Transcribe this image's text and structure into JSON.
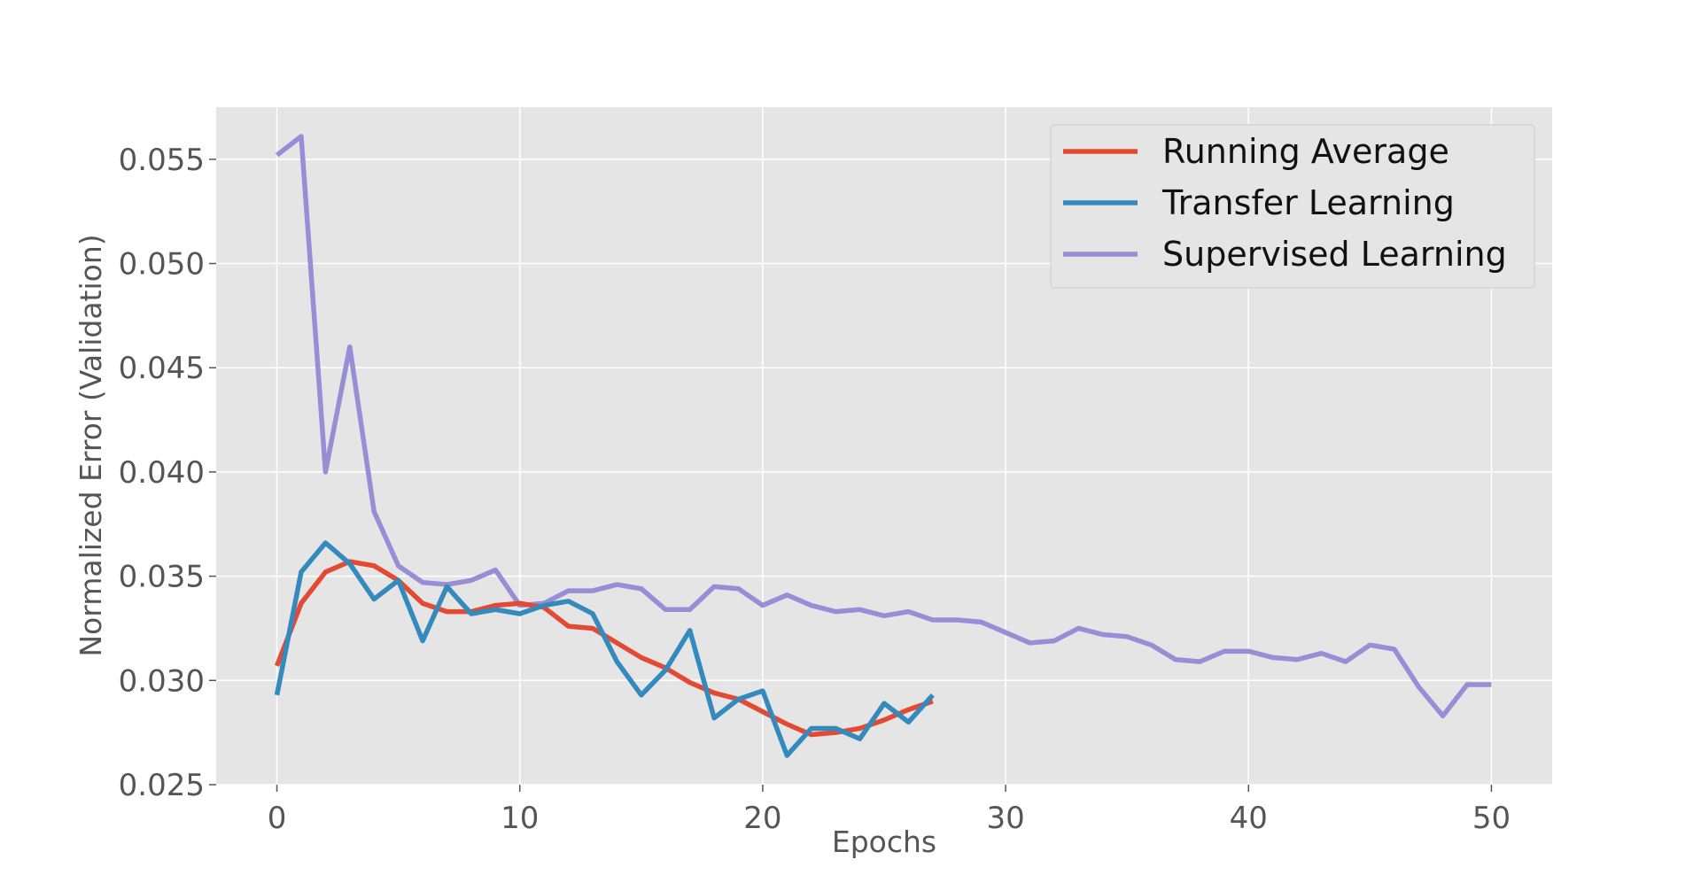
{
  "chart_data": {
    "type": "line",
    "title": "",
    "xlabel": "Epochs",
    "ylabel": "Normalized Error (Validation)",
    "xlim": [
      -2.5,
      52.5
    ],
    "ylim": [
      0.025,
      0.0575
    ],
    "xticks": [
      0,
      10,
      20,
      30,
      40,
      50
    ],
    "yticks": [
      0.025,
      0.03,
      0.035,
      0.04,
      0.045,
      0.05,
      0.055
    ],
    "xtick_labels": [
      "0",
      "10",
      "20",
      "30",
      "40",
      "50"
    ],
    "ytick_labels": [
      "0.025",
      "0.030",
      "0.035",
      "0.040",
      "0.045",
      "0.050",
      "0.055"
    ],
    "grid": true,
    "legend_position": "top-right",
    "series": [
      {
        "name": "Running Average",
        "color": "#E24A33",
        "x": [
          0,
          1,
          2,
          3,
          4,
          5,
          6,
          7,
          8,
          9,
          10,
          11,
          12,
          13,
          14,
          15,
          16,
          17,
          18,
          19,
          20,
          21,
          22,
          23,
          24,
          25,
          26,
          27
        ],
        "values": [
          0.0307,
          0.0337,
          0.0352,
          0.0357,
          0.0355,
          0.0348,
          0.0337,
          0.0333,
          0.0333,
          0.0336,
          0.0337,
          0.0335,
          0.0326,
          0.0325,
          0.0318,
          0.0311,
          0.0306,
          0.0299,
          0.0294,
          0.0291,
          0.0285,
          0.0279,
          0.0274,
          0.0275,
          0.0277,
          0.0281,
          0.0286,
          0.029
        ]
      },
      {
        "name": "Transfer Learning",
        "color": "#348ABD",
        "x": [
          0,
          1,
          2,
          3,
          4,
          5,
          6,
          7,
          8,
          9,
          10,
          11,
          12,
          13,
          14,
          15,
          16,
          17,
          18,
          19,
          20,
          21,
          22,
          23,
          24,
          25,
          26,
          27
        ],
        "values": [
          0.0293,
          0.0352,
          0.0366,
          0.0356,
          0.0339,
          0.0348,
          0.0319,
          0.0345,
          0.0332,
          0.0334,
          0.0332,
          0.0336,
          0.0338,
          0.0332,
          0.0309,
          0.0293,
          0.0305,
          0.0324,
          0.0282,
          0.0291,
          0.0295,
          0.0264,
          0.0277,
          0.0277,
          0.0272,
          0.0289,
          0.028,
          0.0293
        ]
      },
      {
        "name": "Supervised Learning",
        "color": "#988ED5",
        "x": [
          0,
          1,
          2,
          3,
          4,
          5,
          6,
          7,
          8,
          9,
          10,
          11,
          12,
          13,
          14,
          15,
          16,
          17,
          18,
          19,
          20,
          21,
          22,
          23,
          24,
          25,
          26,
          27,
          28,
          29,
          30,
          31,
          32,
          33,
          34,
          35,
          36,
          37,
          38,
          39,
          40,
          41,
          42,
          43,
          44,
          45,
          46,
          47,
          48,
          49,
          50
        ],
        "values": [
          0.0552,
          0.0561,
          0.04,
          0.046,
          0.0381,
          0.0355,
          0.0347,
          0.0346,
          0.0348,
          0.0353,
          0.0336,
          0.0337,
          0.0343,
          0.0343,
          0.0346,
          0.0344,
          0.0334,
          0.0334,
          0.0345,
          0.0344,
          0.0336,
          0.0341,
          0.0336,
          0.0333,
          0.0334,
          0.0331,
          0.0333,
          0.0329,
          0.0329,
          0.0328,
          0.0323,
          0.0318,
          0.0319,
          0.0325,
          0.0322,
          0.0321,
          0.0317,
          0.031,
          0.0309,
          0.0314,
          0.0314,
          0.0311,
          0.031,
          0.0313,
          0.0309,
          0.0317,
          0.0315,
          0.0297,
          0.0283,
          0.0298,
          0.0298
        ]
      }
    ]
  }
}
